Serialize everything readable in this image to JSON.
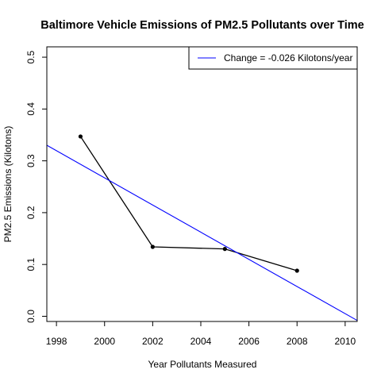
{
  "chart_data": {
    "type": "line",
    "title": "Baltimore Vehicle Emissions of PM2.5 Pollutants over Time",
    "xlabel": "Year Pollutants Measured",
    "ylabel": "PM2.5 Emissions (Kilotons)",
    "xlim": [
      1997.6,
      2010.5
    ],
    "ylim": [
      -0.01,
      0.52
    ],
    "x_ticks": [
      1998,
      2000,
      2002,
      2004,
      2006,
      2008,
      2010
    ],
    "y_ticks": [
      0.0,
      0.1,
      0.2,
      0.3,
      0.4,
      0.5
    ],
    "x_tick_labels": [
      "1998",
      "2000",
      "2002",
      "2004",
      "2006",
      "2008",
      "2010"
    ],
    "y_tick_labels": [
      "0.0",
      "0.1",
      "0.2",
      "0.3",
      "0.4",
      "0.5"
    ],
    "series": [
      {
        "kind": "data",
        "x": [
          1999,
          2002,
          2005,
          2008
        ],
        "y": [
          0.347,
          0.134,
          0.13,
          0.088
        ],
        "color": "#000000",
        "markers": true
      },
      {
        "name": "Change = -0.026 Kilotons/year",
        "kind": "trend",
        "x": [
          1997.6,
          2010.5
        ],
        "y": [
          0.33,
          -0.008
        ],
        "color": "#0000ff",
        "markers": false
      }
    ],
    "legend": {
      "position": "top-right",
      "entries": [
        {
          "label": "Change = -0.026 Kilotons/year",
          "color": "#0000ff"
        }
      ]
    },
    "grid": false
  }
}
